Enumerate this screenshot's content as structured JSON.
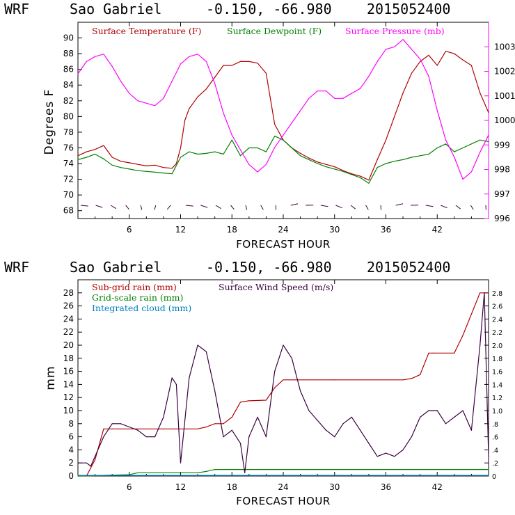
{
  "chart_data": [
    {
      "type": "line",
      "header": {
        "model": "WRF",
        "location": "Sao Gabriel",
        "coords": "-0.150, -66.980",
        "run": "2015052400"
      },
      "xlabel": "FORECAST HOUR",
      "ylabel": "Degrees F",
      "xlim": [
        0,
        48
      ],
      "x_ticks": [
        "6",
        "12",
        "18",
        "24",
        "30",
        "36",
        "42"
      ],
      "ylim": [
        67,
        92
      ],
      "y_ticks": [
        "68",
        "70",
        "72",
        "74",
        "76",
        "78",
        "80",
        "82",
        "84",
        "86",
        "88",
        "90"
      ],
      "y2lim": [
        996,
        1004
      ],
      "y2_ticks": [
        "996",
        "997",
        "998",
        "999",
        "1000",
        "1001",
        "1002",
        "1003"
      ],
      "legend": [
        {
          "label": "Surface Temperature (F)",
          "color": "#b00000"
        },
        {
          "label": "Surface Dewpoint (F)",
          "color": "#008000"
        },
        {
          "label": "Surface Pressure (mb)",
          "color": "#ff00ff"
        }
      ],
      "series": [
        {
          "name": "Surface Temperature (F)",
          "axis": "left",
          "color": "#b00000",
          "x": [
            0,
            1,
            2,
            3,
            4,
            5,
            6,
            7,
            8,
            9,
            10,
            11,
            11.5,
            12,
            12.5,
            13,
            14,
            15,
            16,
            17,
            18,
            19,
            20,
            21,
            22,
            23,
            24,
            25,
            26,
            27,
            28,
            29,
            30,
            31,
            32,
            33,
            34,
            35,
            36,
            37,
            38,
            39,
            40,
            41,
            42,
            43,
            44,
            45,
            46,
            47,
            48
          ],
          "values": [
            75,
            75.5,
            75.8,
            76.3,
            74.8,
            74.3,
            74.1,
            73.9,
            73.7,
            73.8,
            73.5,
            73.4,
            74.0,
            76.0,
            79.5,
            81,
            82.5,
            83.5,
            85,
            86.5,
            86.5,
            87,
            87,
            86.8,
            85.5,
            79,
            77,
            76,
            75.3,
            74.7,
            74.2,
            73.9,
            73.6,
            73.1,
            72.7,
            72.4,
            71.9,
            74.5,
            77,
            80,
            83,
            85.5,
            87,
            87.8,
            86.5,
            88.3,
            88,
            87.2,
            86.5,
            83,
            80.5
          ]
        },
        {
          "name": "Surface Dewpoint (F)",
          "axis": "left",
          "color": "#008000",
          "x": [
            0,
            1,
            2,
            3,
            4,
            5,
            6,
            7,
            8,
            9,
            10,
            11,
            12,
            13,
            14,
            15,
            16,
            17,
            18,
            19,
            20,
            21,
            22,
            23,
            24,
            25,
            26,
            27,
            28,
            29,
            30,
            31,
            32,
            33,
            34,
            35,
            36,
            37,
            38,
            39,
            40,
            41,
            42,
            43,
            44,
            45,
            46,
            47,
            48
          ],
          "values": [
            74.5,
            74.8,
            75.2,
            74.6,
            73.8,
            73.5,
            73.3,
            73.1,
            73,
            72.9,
            72.8,
            72.7,
            74.8,
            75.5,
            75.2,
            75.3,
            75.5,
            75.2,
            77,
            75,
            76,
            76,
            75.5,
            77.5,
            77,
            76,
            75,
            74.5,
            74,
            73.6,
            73.3,
            73,
            72.6,
            72.2,
            71.5,
            73.5,
            74,
            74.3,
            74.5,
            74.8,
            75,
            75.2,
            76,
            76.5,
            75.5,
            76,
            76.5,
            77,
            76.8
          ]
        },
        {
          "name": "Surface Pressure (mb)",
          "axis": "right",
          "color": "#ff00ff",
          "x": [
            0,
            1,
            2,
            3,
            4,
            5,
            6,
            7,
            8,
            9,
            10,
            11,
            12,
            13,
            14,
            15,
            16,
            17,
            18,
            19,
            20,
            21,
            22,
            23,
            24,
            25,
            26,
            27,
            28,
            29,
            30,
            31,
            32,
            33,
            34,
            35,
            36,
            37,
            38,
            39,
            40,
            41,
            42,
            43,
            44,
            45,
            46,
            47,
            48
          ],
          "values": [
            1001.9,
            1002.4,
            1002.6,
            1002.7,
            1002.2,
            1001.6,
            1001.1,
            1000.8,
            1000.7,
            1000.6,
            1000.9,
            1001.6,
            1002.3,
            1002.6,
            1002.7,
            1002.4,
            1001.5,
            1000.3,
            999.4,
            998.8,
            998.2,
            997.9,
            998.2,
            998.9,
            999.4,
            999.9,
            1000.4,
            1000.9,
            1001.2,
            1001.2,
            1000.9,
            1000.9,
            1001.1,
            1001.3,
            1001.8,
            1002.4,
            1002.9,
            1003.0,
            1003.3,
            1002.9,
            1002.5,
            1001.8,
            1000.4,
            999.2,
            998.5,
            997.6,
            997.9,
            998.7,
            999.4
          ]
        }
      ]
    },
    {
      "type": "line",
      "header": {
        "model": "WRF",
        "location": "Sao Gabriel",
        "coords": "-0.150, -66.980",
        "run": "2015052400"
      },
      "xlabel": "FORECAST HOUR",
      "ylabel": "mm",
      "xlim": [
        0,
        48
      ],
      "x_ticks": [
        "6",
        "12",
        "18",
        "24",
        "30",
        "36",
        "42"
      ],
      "ylim": [
        0,
        30
      ],
      "y_ticks": [
        "0",
        "2",
        "4",
        "6",
        "8",
        "10",
        "12",
        "14",
        "16",
        "18",
        "20",
        "22",
        "24",
        "26",
        "28"
      ],
      "y2lim": [
        0,
        3
      ],
      "y2_ticks": [
        "0",
        ".2",
        ".4",
        ".6",
        ".8",
        "1.0",
        "1.2",
        "1.4",
        "1.6",
        "1.8",
        "2.0",
        "2.2",
        "2.4",
        "2.6",
        "2.8"
      ],
      "legend": [
        {
          "label": "Sub-grid rain (mm)",
          "color": "#b00000"
        },
        {
          "label": "Surface Wind Speed (m/s)",
          "color": "#3a0040"
        },
        {
          "label": "Grid-scale rain (mm)",
          "color": "#008000"
        },
        {
          "label": "Integrated cloud (mm)",
          "color": "#0080c0"
        }
      ],
      "series": [
        {
          "name": "Sub-grid rain (mm)",
          "axis": "left",
          "color": "#b00000",
          "x": [
            0,
            1,
            2,
            3,
            4,
            10,
            14,
            15,
            16,
            17,
            18,
            19,
            20,
            22,
            23,
            24,
            30,
            38,
            39,
            40,
            41,
            41.5,
            44,
            45,
            47,
            48
          ],
          "values": [
            0,
            0,
            2.5,
            7.2,
            7.2,
            7.2,
            7.2,
            7.5,
            8.0,
            8.0,
            9.0,
            11.3,
            11.5,
            11.6,
            13.5,
            14.7,
            14.7,
            14.7,
            14.9,
            15.5,
            18.8,
            18.8,
            18.8,
            21.5,
            28,
            28
          ]
        },
        {
          "name": "Grid-scale rain (mm)",
          "axis": "left",
          "color": "#008000",
          "x": [
            0,
            6,
            7,
            14,
            15,
            16,
            48
          ],
          "values": [
            0,
            0.2,
            0.5,
            0.5,
            0.7,
            1.0,
            1.0
          ]
        },
        {
          "name": "Integrated cloud (mm)",
          "axis": "left",
          "color": "#0080c0",
          "x": [
            0,
            48
          ],
          "values": [
            0.1,
            0.1
          ]
        },
        {
          "name": "Surface Wind Speed (m/s)",
          "axis": "right",
          "color": "#3a0040",
          "x": [
            0,
            1,
            1.5,
            2,
            3,
            4,
            5,
            6,
            7,
            8,
            9,
            10,
            11,
            11.5,
            12,
            13,
            14,
            15,
            16,
            17,
            18,
            19,
            19.5,
            20,
            21,
            22,
            23,
            24,
            25,
            26,
            27,
            28,
            29,
            30,
            31,
            32,
            33,
            34,
            35,
            36,
            37,
            38,
            39,
            40,
            41,
            42,
            43,
            44,
            45,
            46,
            47,
            47.5,
            48
          ],
          "values": [
            0.2,
            0.2,
            0.15,
            0.3,
            0.6,
            0.8,
            0.8,
            0.75,
            0.7,
            0.6,
            0.6,
            0.9,
            1.5,
            1.4,
            0.2,
            1.5,
            2.0,
            1.9,
            1.3,
            0.6,
            0.7,
            0.5,
            0.05,
            0.6,
            0.9,
            0.6,
            1.6,
            2.0,
            1.8,
            1.3,
            1.0,
            0.85,
            0.7,
            0.6,
            0.8,
            0.9,
            0.7,
            0.5,
            0.3,
            0.35,
            0.3,
            0.4,
            0.6,
            0.9,
            1.0,
            1.0,
            0.8,
            0.9,
            1.0,
            0.7,
            2.0,
            2.8,
            0.3
          ]
        }
      ]
    }
  ]
}
